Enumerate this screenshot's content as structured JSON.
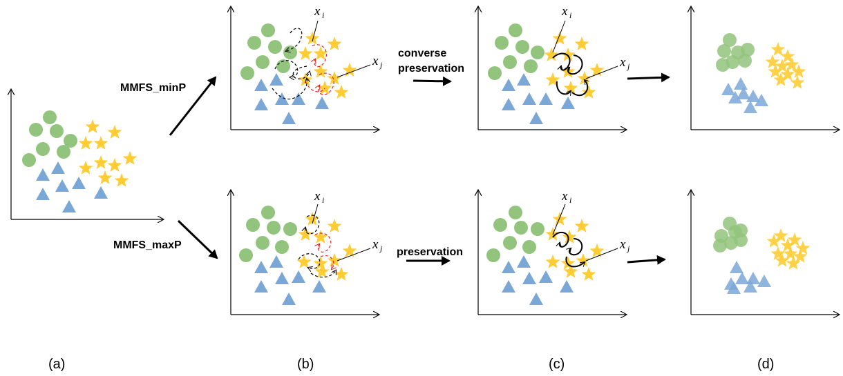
{
  "labels": {
    "minP": "MMFS_minP",
    "maxP": "MMFS_maxP",
    "converse_line1": "converse",
    "converse_line2": "preservation",
    "preservation": "preservation",
    "xi_main": "x",
    "xi_sub": "i",
    "xj_main": "x",
    "xj_sub": "j"
  },
  "panels": [
    "(a)",
    "(b)",
    "(c)",
    "(d)"
  ],
  "colors": {
    "circle": "#93c47d",
    "triangle": "#7ba7d7",
    "star": "#ffcc33",
    "red_dashed": "#e02020",
    "axis": "#000000"
  }
}
